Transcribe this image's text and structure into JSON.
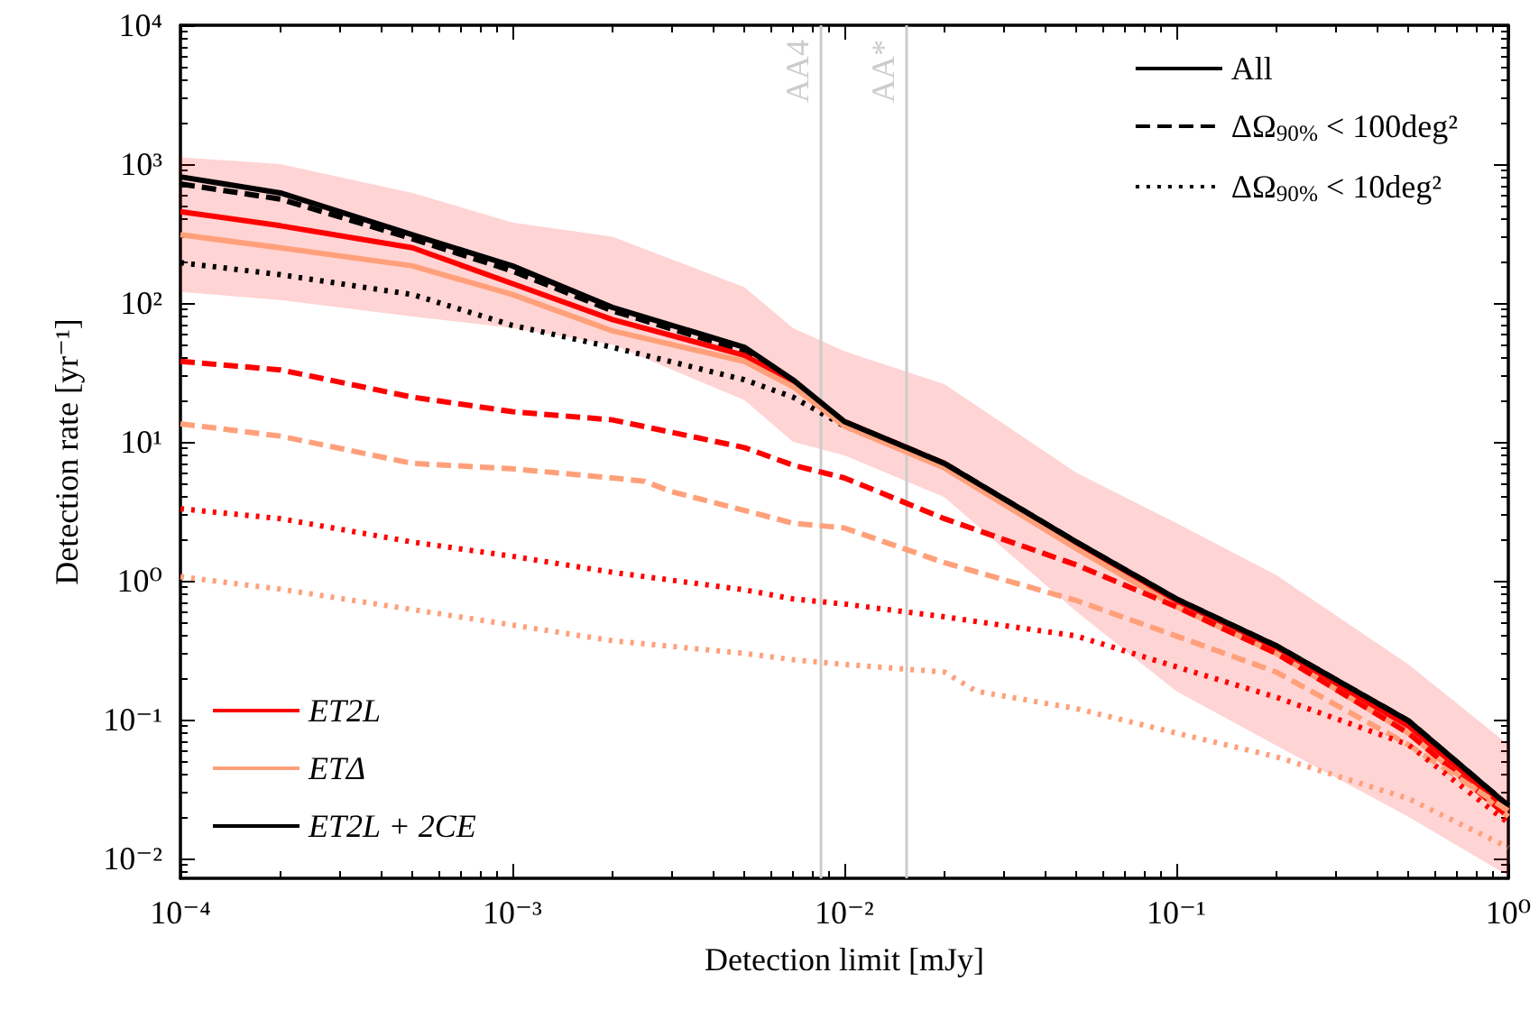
{
  "chart_data": {
    "type": "line",
    "xlabel": "Detection limit [mJy]",
    "ylabel": "Detection rate [yr⁻¹]",
    "log": "xy",
    "xlim": [
      0.0001,
      1
    ],
    "ylim": [
      0.0072,
      10000
    ],
    "xticks": [
      {
        "value": 0.0001,
        "label": "10⁻⁴"
      },
      {
        "value": 0.001,
        "label": "10⁻³"
      },
      {
        "value": 0.01,
        "label": "10⁻²"
      },
      {
        "value": 0.1,
        "label": "10⁻¹"
      },
      {
        "value": 1,
        "label": "10⁰"
      }
    ],
    "yticks": [
      {
        "value": 0.01,
        "label": "10⁻²"
      },
      {
        "value": 0.1,
        "label": "10⁻¹"
      },
      {
        "value": 1,
        "label": "10⁰"
      },
      {
        "value": 10,
        "label": "10¹"
      },
      {
        "value": 100,
        "label": "10²"
      },
      {
        "value": 1000,
        "label": "10³"
      },
      {
        "value": 10000,
        "label": "10⁴"
      }
    ],
    "grid": false,
    "legend": "top right",
    "x": [
      0.0001,
      0.0002,
      0.0005,
      0.001,
      0.002,
      0.005,
      0.007,
      0.01,
      0.02,
      0.05,
      0.1,
      0.2,
      0.5,
      1
    ],
    "series": [
      {
        "name": "All",
        "color": "#000000",
        "line_style": "solid",
        "values": [
          null,
          null,
          null,
          null,
          null,
          null,
          null,
          null,
          null,
          null,
          null,
          null,
          null,
          null
        ]
      },
      {
        "name": "ΔΩ$_{90%}$ < 100deg²",
        "color": "#000000",
        "line_style": "dashed",
        "values": [
          720,
          560,
          290,
          170,
          88,
          45,
          27,
          14,
          7,
          1.9,
          0.74,
          0.34,
          0.098,
          0.024
        ]
      },
      {
        "name": "ΔΩ$_{90%}$ < 10deg²",
        "color": "#000000",
        "line_style": "dotted",
        "values": [
          195,
          160,
          115,
          69,
          48,
          28,
          21,
          13,
          6.8,
          1.8,
          0.7,
          0.33,
          0.095,
          0.023
        ]
      },
      {
        "name": "ET2L",
        "color": "#ff0000",
        "line_style": "solid",
        "values": [
          455,
          360,
          250,
          138,
          76,
          42,
          27,
          14,
          7,
          1.8,
          0.7,
          0.32,
          0.09,
          0.022
        ],
        "lower": [
          120,
          105,
          80,
          66,
          50,
          20,
          10,
          8,
          4,
          0.6,
          0.16,
          0.065,
          0.02,
          0.0075
        ],
        "upper": [
          1120,
          1000,
          620,
          380,
          300,
          130,
          66,
          45,
          26,
          6,
          2.6,
          1.1,
          0.25,
          0.066
        ]
      },
      {
        "name": "ETΔ",
        "color": "#ffa07a",
        "line_style": "solid",
        "values": [
          310,
          250,
          185,
          115,
          63,
          38,
          25,
          13,
          6.5,
          1.7,
          0.65,
          0.3,
          0.08,
          0.02
        ]
      },
      {
        "name": "ET2L + 2CE",
        "color": "#000000",
        "line_style": "solid",
        "values": [
          810,
          620,
          310,
          185,
          93,
          48,
          28,
          14,
          7,
          1.9,
          0.74,
          0.34,
          0.098,
          0.024
        ]
      },
      {
        "color": "#ff0000",
        "line_style": "dashed",
        "values": [
          38,
          33,
          21,
          16.5,
          14.4,
          9.1,
          6.8,
          5.5,
          2.8,
          1.3,
          0.65,
          0.3,
          0.08,
          0.02
        ]
      },
      {
        "color": "#ffa07a",
        "line_style": "dashed",
        "x": [
          0.0001,
          0.0002,
          0.0005,
          0.001,
          0.002,
          0.0025,
          0.003,
          0.007,
          0.01,
          0.02,
          0.05,
          0.1,
          0.2,
          0.5,
          1
        ],
        "values": [
          13.5,
          11,
          7,
          6.4,
          5.5,
          5.2,
          4.4,
          2.6,
          2.4,
          1.35,
          0.72,
          0.4,
          0.22,
          0.066,
          0.022
        ]
      },
      {
        "color": "#ff0000",
        "line_style": "dotted",
        "values": [
          3.3,
          2.8,
          1.9,
          1.5,
          1.15,
          0.86,
          0.74,
          0.68,
          0.55,
          0.4,
          0.24,
          0.145,
          0.066,
          0.018
        ]
      },
      {
        "color": "#ffa07a",
        "line_style": "dotted",
        "x": [
          0.0001,
          0.0002,
          0.0005,
          0.001,
          0.002,
          0.005,
          0.007,
          0.01,
          0.02,
          0.025,
          0.05,
          0.1,
          0.2,
          0.5,
          1
        ],
        "values": [
          1.07,
          0.87,
          0.62,
          0.48,
          0.37,
          0.3,
          0.27,
          0.25,
          0.22,
          0.16,
          0.12,
          0.08,
          0.054,
          0.027,
          0.012
        ]
      }
    ],
    "ref_lines": [
      {
        "axis": "x",
        "value": 0.0085,
        "label": "AA4",
        "color": "#cccccc"
      },
      {
        "axis": "x",
        "value": 0.0154,
        "label": "AA*",
        "color": "#cccccc"
      }
    ]
  }
}
